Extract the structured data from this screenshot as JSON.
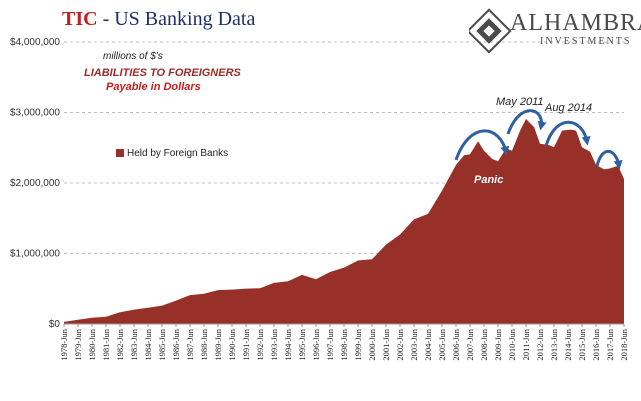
{
  "header": {
    "title_part1": "TIC",
    "title_part2": " - US Banking Data"
  },
  "brand": {
    "name": "ALHAMBRA",
    "subtitle": "INVESTMENTS"
  },
  "annotations": {
    "units": "millions of $'s",
    "line1": "LIABILITIES TO FOREIGNERS",
    "line2": "Payable in Dollars",
    "events": {
      "may2011": "May 2011",
      "aug2014": "Aug 2014",
      "panic": "Panic"
    }
  },
  "colors": {
    "fill": "#963029",
    "title_red": "#c41e1e",
    "title_blue": "#1f2f6b",
    "arrow": "#2f5f9e"
  },
  "chart_data": {
    "type": "area",
    "series": [
      {
        "name": "Held by Foreign Banks",
        "points": [
          [
            1978.42,
            30000
          ],
          [
            1979.42,
            60000
          ],
          [
            1980.42,
            90000
          ],
          [
            1981.42,
            100000
          ],
          [
            1982.42,
            170000
          ],
          [
            1983.42,
            200000
          ],
          [
            1984.42,
            235000
          ],
          [
            1985.42,
            255000
          ],
          [
            1986.42,
            340000
          ],
          [
            1987.42,
            400000
          ],
          [
            1988.42,
            440000
          ],
          [
            1989.42,
            470000
          ],
          [
            1990.42,
            500000
          ],
          [
            1991.42,
            490000
          ],
          [
            1992.42,
            520000
          ],
          [
            1993.42,
            570000
          ],
          [
            1994.42,
            620000
          ],
          [
            1995.42,
            680000
          ],
          [
            1996.42,
            650000
          ],
          [
            1997.42,
            720000
          ],
          [
            1998.42,
            820000
          ],
          [
            1999.42,
            880000
          ],
          [
            2000.42,
            940000
          ],
          [
            2001.42,
            1100000
          ],
          [
            2002.42,
            1300000
          ],
          [
            2003.42,
            1450000
          ],
          [
            2004.42,
            1600000
          ],
          [
            2005.42,
            1850000
          ],
          [
            2006.42,
            2300000
          ],
          [
            2007.0,
            2350000
          ],
          [
            2007.42,
            2450000
          ],
          [
            2008.0,
            2550000
          ],
          [
            2008.42,
            2500000
          ],
          [
            2009.0,
            2300000
          ],
          [
            2009.42,
            2350000
          ],
          [
            2010.0,
            2450000
          ],
          [
            2010.42,
            2500000
          ],
          [
            2011.0,
            2700000
          ],
          [
            2011.42,
            2950000
          ],
          [
            2012.0,
            2750000
          ],
          [
            2012.42,
            2600000
          ],
          [
            2013.0,
            2500000
          ],
          [
            2013.42,
            2550000
          ],
          [
            2014.0,
            2700000
          ],
          [
            2014.6,
            2800000
          ],
          [
            2015.0,
            2700000
          ],
          [
            2015.42,
            2550000
          ],
          [
            2016.0,
            2400000
          ],
          [
            2016.42,
            2300000
          ],
          [
            2017.0,
            2150000
          ],
          [
            2017.42,
            2250000
          ],
          [
            2018.0,
            2200000
          ],
          [
            2018.42,
            2100000
          ]
        ]
      }
    ],
    "ylim": [
      0,
      4000000
    ],
    "yticks": [
      0,
      1000000,
      2000000,
      3000000,
      4000000
    ],
    "ytick_labels": [
      "$0",
      "$1,000,000",
      "$2,000,000",
      "$3,000,000",
      "$4,000,000"
    ],
    "xlim": [
      1978.42,
      2018.42
    ],
    "xtick_labels": [
      "1978-Jun",
      "1979-Jun",
      "1980-Jun",
      "1981-Jun",
      "1982-Jun",
      "1983-Jun",
      "1984-Jun",
      "1985-Jun",
      "1986-Jun",
      "1987-Jun",
      "1988-Jun",
      "1989-Jun",
      "1990-Jun",
      "1991-Jun",
      "1992-Jun",
      "1993-Jun",
      "1994-Jun",
      "1995-Jun",
      "1996-Jun",
      "1997-Jun",
      "1998-Jun",
      "1999-Jun",
      "2000-Jun",
      "2001-Jun",
      "2002-Jun",
      "2003-Jun",
      "2004-Jun",
      "2005-Jun",
      "2006-Jun",
      "2007-Jun",
      "2008-Jun",
      "2009-Jun",
      "2010-Jun",
      "2011-Jun",
      "2012-Jun",
      "2013-Jun",
      "2014-Jun",
      "2015-Jun",
      "2016-Jun",
      "2017-Jun",
      "2018-Jun"
    ],
    "grid": true,
    "legend": "left"
  }
}
